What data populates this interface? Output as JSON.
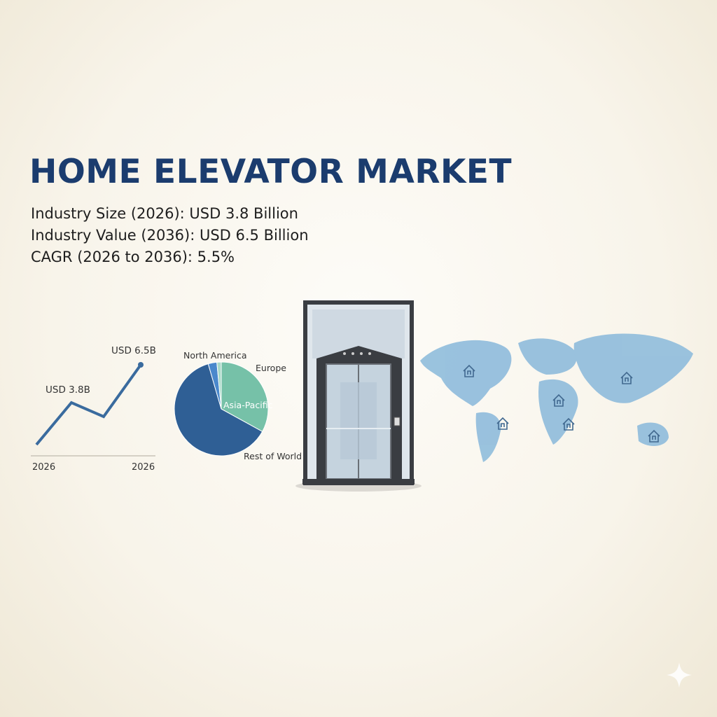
{
  "title": "HOME ELEVATOR MARKET",
  "stats": [
    "Industry Size (2026): USD 3.8 Billion",
    "Industry Value (2036): USD 6.5 Billion",
    "CAGR (2026 to 2036): 5.5%"
  ],
  "colors": {
    "title": "#1b3c6e",
    "line": "#3a6b9e",
    "pie_dark": "#2f5f95",
    "pie_blue": "#4a88cc",
    "pie_teal": "#76c1a8",
    "map": "#8fbcdc"
  },
  "chart_data": [
    {
      "type": "line",
      "x_tick_labels": [
        "2026",
        "2026"
      ],
      "values": [
        0.8,
        3.8,
        2.8,
        6.5
      ],
      "data_labels": [
        "",
        "USD 3.8B",
        "",
        "USD 6.5B"
      ],
      "grid": false
    },
    {
      "type": "pie",
      "slices": [
        {
          "label": "Europe",
          "value": 33,
          "color": "#76c1a8"
        },
        {
          "label": "Rest of World",
          "value": 62.5,
          "color": "#2f5f95"
        },
        {
          "label": "North America",
          "value": 3,
          "color": "#4a88cc"
        },
        {
          "label": "",
          "value": 1.5,
          "color": "#a9d9c8"
        }
      ],
      "inner_label": "Asia-Pacific"
    }
  ],
  "map": {
    "markers": [
      "home-icon",
      "home-icon",
      "home-icon",
      "home-icon",
      "home-icon",
      "home-icon"
    ]
  }
}
